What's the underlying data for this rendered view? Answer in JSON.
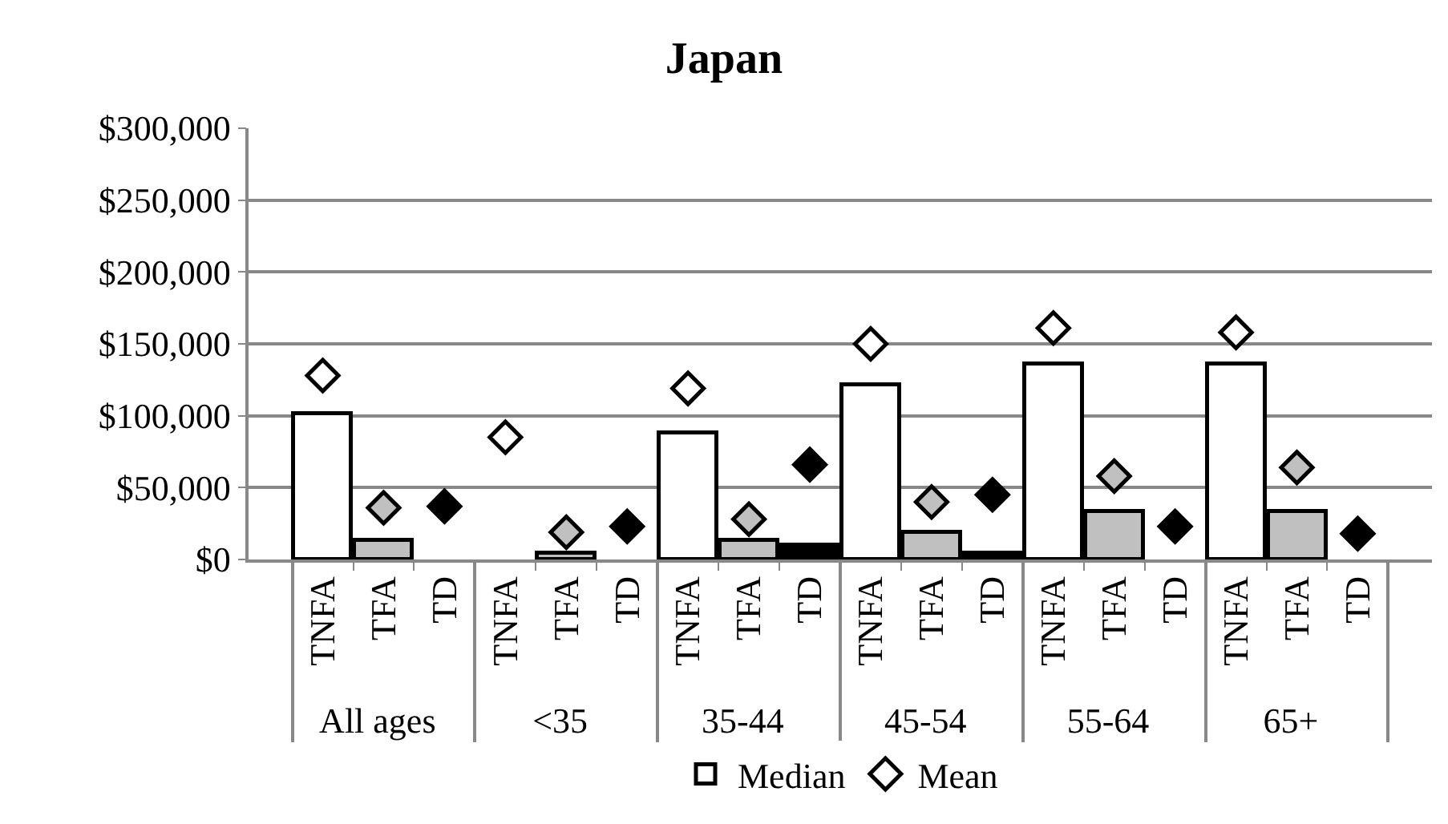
{
  "chart_data": {
    "type": "bar",
    "title": "Japan",
    "categories": [
      "TNFA",
      "TFA",
      "TD",
      "TNFA",
      "TFA",
      "TD",
      "TNFA",
      "TFA",
      "TD",
      "TNFA",
      "TFA",
      "TD",
      "TNFA",
      "TFA",
      "TD",
      "TNFA",
      "TFA",
      "TD"
    ],
    "annotations": [
      "All ages",
      "<35",
      "35-44",
      "45-54",
      "55-64",
      "65+"
    ],
    "series": [
      {
        "name": "Median",
        "colors": [
          "#ffffff",
          "#c0c0c0",
          "#000000",
          "#ffffff",
          "#c0c0c0",
          "#000000",
          "#ffffff",
          "#c0c0c0",
          "#000000",
          "#ffffff",
          "#c0c0c0",
          "#000000",
          "#ffffff",
          "#c0c0c0",
          "#000000",
          "#ffffff",
          "#c0c0c0",
          "#000000"
        ],
        "values": [
          102000,
          13000,
          null,
          null,
          4000,
          null,
          88000,
          13000,
          10000,
          122000,
          19000,
          5000,
          136000,
          33000,
          null,
          136000,
          33000,
          null
        ]
      },
      {
        "name": "Mean",
        "type": "scatter",
        "marker": "diamond",
        "colors": [
          "#ffffff",
          "#c0c0c0",
          "#000000",
          "#ffffff",
          "#c0c0c0",
          "#000000",
          "#ffffff",
          "#c0c0c0",
          "#000000",
          "#ffffff",
          "#c0c0c0",
          "#000000",
          "#ffffff",
          "#c0c0c0",
          "#000000",
          "#ffffff",
          "#c0c0c0",
          "#000000"
        ],
        "values": [
          128000,
          36000,
          37000,
          85000,
          19000,
          23000,
          119000,
          28000,
          66000,
          150000,
          40000,
          45000,
          161000,
          58000,
          23000,
          158000,
          64000,
          18000
        ]
      }
    ],
    "ylim": [
      0,
      300000
    ],
    "yticks": [
      {
        "value": 0,
        "label": "$0"
      },
      {
        "value": 50000,
        "label": "$50,000"
      },
      {
        "value": 100000,
        "label": "$100,000"
      },
      {
        "value": 150000,
        "label": "$150,000"
      },
      {
        "value": 200000,
        "label": "$200,000"
      },
      {
        "value": 250000,
        "label": "$250,000"
      },
      {
        "value": 300000,
        "label": "$300,000"
      }
    ],
    "grid": "y",
    "legend": "bottom"
  }
}
